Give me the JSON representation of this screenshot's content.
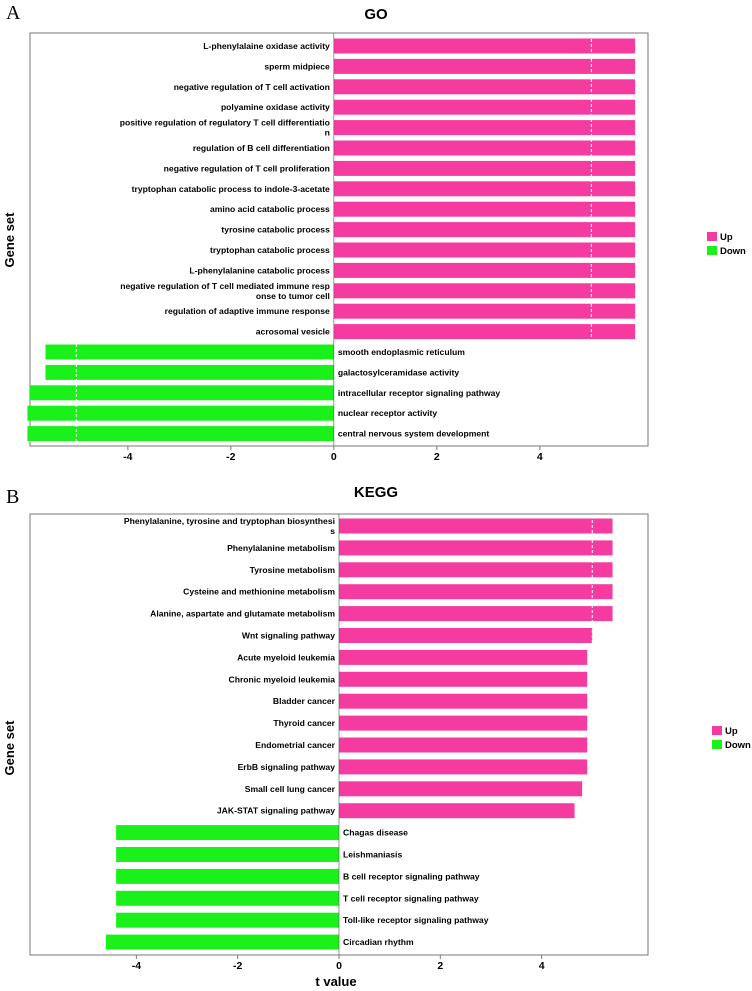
{
  "colors": {
    "up": "#f53ba0",
    "down": "#1af01a",
    "frame": "#7a7a7a"
  },
  "legend": {
    "up": "Up",
    "down": "Down"
  },
  "chart_data": [
    {
      "type": "bar",
      "orientation": "horizontal",
      "panel": "A",
      "title": "GO",
      "ylabel": "Gene set",
      "xlabel": "",
      "xlim": [
        -5.9,
        6.1
      ],
      "xticks": [
        -4,
        -2,
        0,
        2,
        4
      ],
      "threshold_lines": [
        -5,
        5
      ],
      "legend": [
        "Up",
        "Down"
      ],
      "categories": [
        "L-phenylalaine oxidase activity",
        "sperm midpiece",
        "negative regulation of T cell activation",
        "polyamine oxidase activity",
        "positive regulation of regulatory T cell differentiatio\nn",
        "regulation of B cell differentiation",
        "negative regulation of T cell proliferation",
        "tryptophan catabolic process to indole-3-acetate",
        "amino acid catabolic process",
        "tyrosine catabolic process",
        "tryptophan catabolic process",
        "L-phenylalanine catabolic process",
        "negative regulation of T cell mediated immune resp\nonse to tumor cell",
        "regulation of adaptive immune response",
        "acrosomal vesicle",
        "smooth endoplasmic reticulum",
        "galactosylceramidase activity",
        "intracellular receptor signaling pathway",
        "nuclear receptor activity",
        "central nervous system development"
      ],
      "values": [
        5.85,
        5.85,
        5.85,
        5.85,
        5.85,
        5.85,
        5.85,
        5.85,
        5.85,
        5.85,
        5.85,
        5.85,
        5.85,
        5.85,
        5.85,
        -5.6,
        -5.6,
        -5.9,
        -5.95,
        -5.95
      ]
    },
    {
      "type": "bar",
      "orientation": "horizontal",
      "panel": "B",
      "title": "KEGG",
      "ylabel": "Gene set",
      "xlabel": "t value",
      "xlim": [
        -6.1,
        6.1
      ],
      "xticks": [
        -4,
        -2,
        0,
        2,
        4
      ],
      "threshold_lines": [
        -5,
        5
      ],
      "legend": [
        "Up",
        "Down"
      ],
      "categories": [
        "Phenylalanine, tyrosine and tryptophan biosynthesi\ns",
        "Phenylalanine metabolism",
        "Tyrosine metabolism",
        "Cysteine and methionine metabolism",
        "Alanine, aspartate and glutamate metabolism",
        "Wnt signaling pathway",
        "Acute myeloid leukemia",
        "Chronic myeloid leukemia",
        "Bladder cancer",
        "Thyroid cancer",
        "Endometrial cancer",
        "ErbB signaling pathway",
        "Small cell lung cancer",
        "JAK-STAT signaling pathway",
        "Chagas disease",
        "Leishmaniasis",
        "B cell receptor signaling pathway",
        "T cell receptor signaling pathway",
        "Toll-like receptor signaling pathway",
        "Circadian rhythm"
      ],
      "values": [
        5.4,
        5.4,
        5.4,
        5.4,
        5.4,
        5.0,
        4.9,
        4.9,
        4.9,
        4.9,
        4.9,
        4.9,
        4.8,
        4.65,
        -4.4,
        -4.4,
        -4.4,
        -4.4,
        -4.4,
        -4.6
      ]
    }
  ]
}
